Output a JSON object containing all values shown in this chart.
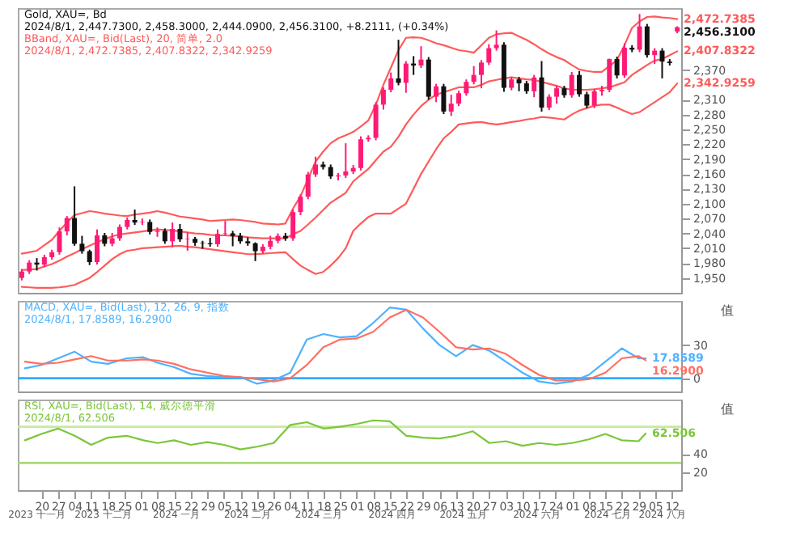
{
  "chart_data": [
    {
      "type": "candlestick",
      "title": "Gold, XAU=, Bd",
      "subtitle": "2024/8/1, 2,447.7300, 2,458.3000, 2,444.0900, 2,456.3100, +8.2111, (+0.34%)",
      "annotations": [
        "BBand, XAU=, Bid(Last), 20, 简单, 2.0",
        "2024/8/1, 2,472.7385, 2,407.8322, 2,342.9259"
      ],
      "categories": [
        null,
        null,
        null,
        null,
        null,
        null,
        null,
        null,
        null,
        null,
        null,
        null,
        null,
        null,
        null,
        null,
        null,
        null,
        null,
        null,
        null,
        null,
        null,
        null,
        null,
        null,
        null,
        null,
        null,
        null,
        null,
        null,
        null,
        null,
        null,
        null,
        null,
        null,
        null,
        null,
        null,
        null,
        null,
        null,
        null,
        null,
        null,
        null,
        null,
        null,
        null,
        null,
        null,
        null,
        null,
        null,
        null,
        null,
        null,
        null,
        null,
        null,
        null,
        null,
        null,
        null,
        null,
        null,
        null,
        null,
        null,
        null,
        null,
        null,
        null,
        null,
        null,
        null,
        null,
        null,
        null,
        null,
        null,
        null,
        null,
        null,
        null,
        null
      ],
      "ohlc": [
        [
          1950,
          1968,
          1945,
          1963
        ],
        [
          1963,
          1986,
          1958,
          1981
        ],
        [
          1981,
          1990,
          1965,
          1977
        ],
        [
          1977,
          1997,
          1972,
          1992
        ],
        [
          1992,
          2007,
          1987,
          2002
        ],
        [
          2002,
          2052,
          1997,
          2044
        ],
        [
          2044,
          2075,
          2036,
          2071
        ],
        [
          2071,
          2135,
          2015,
          2019
        ],
        [
          2019,
          2035,
          1999,
          2004
        ],
        [
          2004,
          2007,
          1976,
          1982
        ],
        [
          1982,
          2048,
          1977,
          2036
        ],
        [
          2036,
          2041,
          2014,
          2019
        ],
        [
          2019,
          2041,
          2014,
          2030
        ],
        [
          2030,
          2058,
          2025,
          2053
        ],
        [
          2053,
          2072,
          2048,
          2067
        ],
        [
          2067,
          2088,
          2057,
          2062
        ],
        [
          2062,
          2070,
          2057,
          2063
        ],
        [
          2063,
          2068,
          2038,
          2043
        ],
        [
          2043,
          2052,
          2033,
          2045
        ],
        [
          2045,
          2050,
          2019,
          2024
        ],
        [
          2024,
          2062,
          2012,
          2049
        ],
        [
          2049,
          2059,
          2023,
          2028
        ],
        [
          2028,
          2042,
          2005,
          2029
        ],
        [
          2029,
          2033,
          2015,
          2021
        ],
        [
          2021,
          2025,
          2009,
          2020
        ],
        [
          2020,
          2031,
          2013,
          2018
        ],
        [
          2018,
          2048,
          2013,
          2039
        ],
        [
          2039,
          2065,
          2035,
          2040
        ],
        [
          2040,
          2045,
          2014,
          2035
        ],
        [
          2035,
          2041,
          2019,
          2024
        ],
        [
          2024,
          2032,
          2015,
          2020
        ],
        [
          2020,
          2022,
          1984,
          2004
        ],
        [
          2004,
          2018,
          1999,
          2013
        ],
        [
          2013,
          2035,
          2008,
          2025
        ],
        [
          2025,
          2040,
          2020,
          2035
        ],
        [
          2035,
          2041,
          2025,
          2030
        ],
        [
          2030,
          2088,
          2025,
          2083
        ],
        [
          2083,
          2119,
          2077,
          2114
        ],
        [
          2114,
          2164,
          2109,
          2159
        ],
        [
          2159,
          2195,
          2154,
          2179
        ],
        [
          2179,
          2185,
          2169,
          2174
        ],
        [
          2174,
          2179,
          2150,
          2155
        ],
        [
          2155,
          2162,
          2147,
          2157
        ],
        [
          2157,
          2222,
          2152,
          2165
        ],
        [
          2165,
          2178,
          2160,
          2172
        ],
        [
          2172,
          2236,
          2167,
          2230
        ],
        [
          2230,
          2238,
          2225,
          2233
        ],
        [
          2233,
          2305,
          2228,
          2300
        ],
        [
          2300,
          2335,
          2290,
          2330
        ],
        [
          2330,
          2365,
          2325,
          2353
        ],
        [
          2353,
          2431,
          2339,
          2344
        ],
        [
          2344,
          2388,
          2324,
          2383
        ],
        [
          2383,
          2398,
          2360,
          2379
        ],
        [
          2379,
          2418,
          2374,
          2391
        ],
        [
          2391,
          2396,
          2310,
          2316
        ],
        [
          2316,
          2342,
          2305,
          2337
        ],
        [
          2337,
          2342,
          2281,
          2286
        ],
        [
          2286,
          2320,
          2277,
          2302
        ],
        [
          2302,
          2328,
          2297,
          2323
        ],
        [
          2323,
          2351,
          2318,
          2346
        ],
        [
          2346,
          2378,
          2341,
          2360
        ],
        [
          2360,
          2390,
          2333,
          2385
        ],
        [
          2385,
          2422,
          2380,
          2414
        ],
        [
          2414,
          2450,
          2409,
          2421
        ],
        [
          2421,
          2426,
          2326,
          2334
        ],
        [
          2334,
          2356,
          2329,
          2351
        ],
        [
          2351,
          2356,
          2327,
          2343
        ],
        [
          2343,
          2348,
          2322,
          2327
        ],
        [
          2327,
          2360,
          2315,
          2355
        ],
        [
          2355,
          2388,
          2286,
          2294
        ],
        [
          2294,
          2321,
          2289,
          2316
        ],
        [
          2316,
          2338,
          2302,
          2333
        ],
        [
          2333,
          2338,
          2314,
          2319
        ],
        [
          2319,
          2366,
          2314,
          2360
        ],
        [
          2360,
          2368,
          2316,
          2321
        ],
        [
          2321,
          2326,
          2293,
          2298
        ],
        [
          2298,
          2332,
          2293,
          2327
        ],
        [
          2327,
          2338,
          2318,
          2330
        ],
        [
          2330,
          2393,
          2325,
          2392
        ],
        [
          2392,
          2397,
          2353,
          2359
        ],
        [
          2359,
          2424,
          2354,
          2415
        ],
        [
          2415,
          2420,
          2406,
          2411
        ],
        [
          2411,
          2483,
          2406,
          2458
        ],
        [
          2458,
          2463,
          2395,
          2400
        ],
        [
          2400,
          2414,
          2382,
          2409
        ],
        [
          2409,
          2414,
          2353,
          2387
        ],
        [
          2387,
          2392,
          2379,
          2384
        ],
        [
          2447.73,
          2458.3,
          2444.09,
          2456.31
        ]
      ],
      "colors": [
        "#ff1a75",
        "#ff1a75",
        "#111111",
        "#ff1a75",
        "#ff1a75",
        "#ff1a75",
        "#ff1a75",
        "#111111",
        "#111111",
        "#111111",
        "#ff1a75",
        "#111111",
        "#ff1a75",
        "#ff1a75",
        "#ff1a75",
        "#111111",
        "#ff1a75",
        "#111111",
        "#ff1a75",
        "#111111",
        "#ff1a75",
        "#111111",
        "#ff1a75",
        "#111111",
        "#111111",
        "#111111",
        "#ff1a75",
        "#ff1a75",
        "#111111",
        "#111111",
        "#111111",
        "#111111",
        "#ff1a75",
        "#ff1a75",
        "#ff1a75",
        "#111111",
        "#ff1a75",
        "#ff1a75",
        "#ff1a75",
        "#ff1a75",
        "#111111",
        "#111111",
        "#ff1a75",
        "#ff1a75",
        "#ff1a75",
        "#ff1a75",
        "#ff1a75",
        "#ff1a75",
        "#ff1a75",
        "#ff1a75",
        "#111111",
        "#ff1a75",
        "#111111",
        "#ff1a75",
        "#111111",
        "#ff1a75",
        "#111111",
        "#ff1a75",
        "#ff1a75",
        "#ff1a75",
        "#ff1a75",
        "#ff1a75",
        "#ff1a75",
        "#ff1a75",
        "#111111",
        "#ff1a75",
        "#111111",
        "#111111",
        "#ff1a75",
        "#111111",
        "#ff1a75",
        "#ff1a75",
        "#111111",
        "#ff1a75",
        "#111111",
        "#111111",
        "#ff1a75",
        "#ff1a75",
        "#ff1a75",
        "#111111",
        "#ff1a75",
        "#111111",
        "#ff1a75",
        "#111111",
        "#ff1a75",
        "#111111",
        "#111111",
        "#ff1a75"
      ],
      "value_labels": [
        null,
        null,
        null,
        null,
        null,
        null,
        null,
        null,
        null,
        null,
        null,
        null,
        null,
        null,
        null,
        null,
        null,
        null,
        null,
        null,
        null,
        null,
        null,
        null,
        null,
        null,
        null,
        null,
        null,
        null,
        null,
        null,
        null,
        null,
        null,
        null,
        null,
        null,
        null,
        null,
        null,
        null,
        null,
        null,
        null,
        null,
        null,
        null,
        null,
        null,
        null,
        null,
        null,
        null,
        null,
        null,
        null,
        null,
        null,
        null,
        null,
        null,
        null,
        null,
        null,
        null,
        null,
        null,
        null,
        null,
        null,
        null,
        null,
        null,
        null,
        null,
        null,
        null,
        null,
        null,
        null,
        null,
        null,
        null,
        null,
        null,
        null,
        "2,456.3100"
      ],
      "series": [
        {
          "type": "line",
          "color": "#ff5a5a",
          "values": [
            1999,
            2002,
            2005,
            2016,
            2027,
            2045,
            2062,
            2077,
            2081,
            2085,
            2083,
            2080,
            2078,
            2076,
            2075,
            2078,
            2080,
            2082,
            2085,
            2082,
            2078,
            2074,
            2072,
            2070,
            2068,
            2065,
            2066,
            2067,
            2068,
            2067,
            2065,
            2063,
            2060,
            2059,
            2058,
            2060,
            2090,
            2115,
            2150,
            2185,
            2205,
            2222,
            2232,
            2238,
            2245,
            2256,
            2268,
            2300,
            2340,
            2375,
            2410,
            2435,
            2436,
            2435,
            2430,
            2424,
            2420,
            2415,
            2410,
            2408,
            2405,
            2420,
            2435,
            2442,
            2444,
            2445,
            2438,
            2431,
            2422,
            2412,
            2403,
            2396,
            2390,
            2380,
            2371,
            2368,
            2366,
            2366,
            2378,
            2390,
            2420,
            2455,
            2468,
            2477,
            2478,
            2476,
            2475,
            2472.7385
          ],
          "value_labels": [
            null,
            null,
            null,
            null,
            null,
            null,
            null,
            null,
            null,
            null,
            null,
            null,
            null,
            null,
            null,
            null,
            null,
            null,
            null,
            null,
            null,
            null,
            null,
            null,
            null,
            null,
            null,
            null,
            null,
            null,
            null,
            null,
            null,
            null,
            null,
            null,
            null,
            null,
            null,
            null,
            null,
            null,
            null,
            null,
            null,
            null,
            null,
            null,
            null,
            null,
            null,
            null,
            null,
            null,
            null,
            null,
            null,
            null,
            null,
            null,
            null,
            null,
            null,
            null,
            null,
            null,
            null,
            null,
            null,
            null,
            null,
            null,
            null,
            null,
            null,
            null,
            null,
            null,
            null,
            null,
            null,
            null,
            null,
            null,
            null,
            null,
            null,
            "2,472.7385"
          ]
        },
        {
          "type": "line",
          "color": "#ff5a5a",
          "values": [
            1966,
            1967,
            1968,
            1973,
            1978,
            1985,
            1993,
            2000,
            2008,
            2015,
            2022,
            2028,
            2034,
            2038,
            2040,
            2042,
            2044,
            2046,
            2048,
            2047,
            2046,
            2044,
            2042,
            2040,
            2039,
            2037,
            2036,
            2036,
            2035,
            2034,
            2032,
            2031,
            2030,
            2030,
            2030,
            2030,
            2038,
            2045,
            2058,
            2072,
            2087,
            2102,
            2112,
            2122,
            2145,
            2158,
            2170,
            2188,
            2205,
            2215,
            2235,
            2260,
            2280,
            2297,
            2310,
            2320,
            2325,
            2330,
            2335,
            2335,
            2335,
            2340,
            2347,
            2350,
            2353,
            2355,
            2353,
            2351,
            2350,
            2346,
            2342,
            2338,
            2333,
            2330,
            2330,
            2330,
            2331,
            2333,
            2335,
            2340,
            2345,
            2360,
            2370,
            2380,
            2389,
            2392,
            2400,
            2407.8322
          ],
          "value_labels": [
            null,
            null,
            null,
            null,
            null,
            null,
            null,
            null,
            null,
            null,
            null,
            null,
            null,
            null,
            null,
            null,
            null,
            null,
            null,
            null,
            null,
            null,
            null,
            null,
            null,
            null,
            null,
            null,
            null,
            null,
            null,
            null,
            null,
            null,
            null,
            null,
            null,
            null,
            null,
            null,
            null,
            null,
            null,
            null,
            null,
            null,
            null,
            null,
            null,
            null,
            null,
            null,
            null,
            null,
            null,
            null,
            null,
            null,
            null,
            null,
            null,
            null,
            null,
            null,
            null,
            null,
            null,
            null,
            null,
            null,
            null,
            null,
            null,
            null,
            null,
            null,
            null,
            null,
            null,
            null,
            null,
            null,
            null,
            null,
            null,
            null,
            null,
            "2,407.8322"
          ]
        },
        {
          "type": "line",
          "color": "#ff5a5a",
          "values": [
            1932,
            1931,
            1930,
            1930,
            1930,
            1931,
            1933,
            1936,
            1943,
            1950,
            1962,
            1975,
            1988,
            1998,
            2005,
            2007,
            2010,
            2011,
            2012,
            2013,
            2014,
            2015,
            2013,
            2012,
            2010,
            2008,
            2006,
            2004,
            2002,
            2000,
            1998,
            1998,
            1999,
            2000,
            2001,
            2002,
            1988,
            1975,
            1966,
            1958,
            1962,
            1975,
            1990,
            2010,
            2045,
            2060,
            2073,
            2080,
            2080,
            2080,
            2090,
            2100,
            2130,
            2160,
            2185,
            2210,
            2232,
            2245,
            2260,
            2262,
            2264,
            2265,
            2262,
            2260,
            2262,
            2265,
            2267,
            2270,
            2272,
            2275,
            2274,
            2272,
            2270,
            2280,
            2288,
            2293,
            2298,
            2300,
            2300,
            2294,
            2287,
            2281,
            2285,
            2295,
            2305,
            2315,
            2325,
            2342.9259
          ],
          "value_labels": [
            null,
            null,
            null,
            null,
            null,
            null,
            null,
            null,
            null,
            null,
            null,
            null,
            null,
            null,
            null,
            null,
            null,
            null,
            null,
            null,
            null,
            null,
            null,
            null,
            null,
            null,
            null,
            null,
            null,
            null,
            null,
            null,
            null,
            null,
            null,
            null,
            null,
            null,
            null,
            null,
            null,
            null,
            null,
            null,
            null,
            null,
            null,
            null,
            null,
            null,
            null,
            null,
            null,
            null,
            null,
            null,
            null,
            null,
            null,
            null,
            null,
            null,
            null,
            null,
            null,
            null,
            null,
            null,
            null,
            null,
            null,
            null,
            null,
            null,
            null,
            null,
            null,
            null,
            null,
            null,
            null,
            null,
            null,
            null,
            null,
            null,
            null,
            "2,342.9259"
          ]
        }
      ],
      "ylim": [
        1920,
        2495
      ],
      "yticks": [
        {
          "value": 1950,
          "label": "1,950"
        },
        {
          "value": 1980,
          "label": "1,980"
        },
        {
          "value": 2010,
          "label": "2,010"
        },
        {
          "value": 2040,
          "label": "2,040"
        },
        {
          "value": 2070,
          "label": "2,070"
        },
        {
          "value": 2100,
          "label": "2,100"
        },
        {
          "value": 2130,
          "label": "2,130"
        },
        {
          "value": 2160,
          "label": "2,160"
        },
        {
          "value": 2190,
          "label": "2,190"
        },
        {
          "value": 2220,
          "label": "2,220"
        },
        {
          "value": 2250,
          "label": "2,250"
        },
        {
          "value": 2280,
          "label": "2,280"
        },
        {
          "value": 2310,
          "label": "2,310"
        },
        {
          "value": 2370,
          "label": "2,370"
        }
      ],
      "tick_labels": "y"
    },
    {
      "type": "line",
      "title": "MACD, XAU=, Bid(Last), 12, 26, 9, 指数",
      "subtitle": "2024/8/1, 17.8589, 16.2900",
      "ylabel": "值",
      "x": [
        "2023-11-13",
        "2023-11-20",
        "2023-11-27",
        "2023-12-04",
        "2023-12-11",
        "2023-12-18",
        "2023-12-26",
        "2024-01-02",
        "2024-01-08",
        "2024-01-15",
        "2024-01-22",
        "2024-01-29",
        "2024-02-05",
        "2024-02-12",
        "2024-02-19",
        "2024-02-26",
        "2024-03-04",
        "2024-03-11",
        "2024-03-18",
        "2024-03-25",
        "2024-04-01",
        "2024-04-08",
        "2024-04-15",
        "2024-04-22",
        "2024-04-29",
        "2024-05-06",
        "2024-05-13",
        "2024-05-20",
        "2024-05-27",
        "2024-06-03",
        "2024-06-10",
        "2024-06-17",
        "2024-06-24",
        "2024-07-01",
        "2024-07-08",
        "2024-07-15",
        "2024-07-22",
        "2024-07-29",
        "2024-08-01"
      ],
      "series": [
        {
          "color": "#4db2ff",
          "values": [
            9,
            12,
            18,
            24,
            15,
            13,
            18,
            19,
            14,
            10,
            4,
            2,
            1,
            1,
            -5,
            -2,
            5,
            35,
            40,
            37,
            38,
            50,
            64,
            62,
            45,
            30,
            20,
            30,
            25,
            15,
            5,
            -3,
            -5,
            -3,
            3,
            15,
            27,
            18,
            17.8589
          ],
          "value_labels": [
            null,
            null,
            null,
            null,
            null,
            null,
            null,
            null,
            null,
            null,
            null,
            null,
            null,
            null,
            null,
            null,
            null,
            null,
            null,
            null,
            null,
            null,
            null,
            null,
            null,
            null,
            null,
            null,
            null,
            null,
            null,
            null,
            null,
            null,
            null,
            null,
            null,
            null,
            "17.8589"
          ]
        },
        {
          "color": "#ff6f61",
          "values": [
            15,
            13,
            14,
            17,
            20,
            16,
            16,
            17,
            16,
            13,
            8,
            5,
            2,
            1,
            -1,
            -3,
            0,
            12,
            28,
            35,
            36,
            42,
            55,
            62,
            55,
            42,
            28,
            26,
            27,
            22,
            12,
            3,
            -2,
            -2,
            -1,
            5,
            18,
            20,
            16.29
          ],
          "value_labels": [
            null,
            null,
            null,
            null,
            null,
            null,
            null,
            null,
            null,
            null,
            null,
            null,
            null,
            null,
            null,
            null,
            null,
            null,
            null,
            null,
            null,
            null,
            null,
            null,
            null,
            null,
            null,
            null,
            null,
            null,
            null,
            null,
            null,
            null,
            null,
            null,
            null,
            null,
            "16.2900"
          ]
        }
      ],
      "ref_lines": [
        {
          "axis": "y",
          "value": 0,
          "color": "#33aaff"
        }
      ],
      "xlim": [
        "2023-11-10",
        "2024-08-16"
      ],
      "ylim": [
        -12,
        70
      ],
      "yticks": [
        0,
        30
      ],
      "tick_labels": "y"
    },
    {
      "type": "line",
      "title": "RSI, XAU=, Bid(Last), 14, 威尔德平滑",
      "subtitle": "2024/8/1, 62.506",
      "ylabel": "值",
      "x": [
        "2023-11-13",
        "2023-11-20",
        "2023-11-27",
        "2023-12-04",
        "2023-12-11",
        "2023-12-18",
        "2023-12-26",
        "2024-01-02",
        "2024-01-08",
        "2024-01-15",
        "2024-01-22",
        "2024-01-29",
        "2024-02-05",
        "2024-02-12",
        "2024-02-19",
        "2024-02-26",
        "2024-03-04",
        "2024-03-11",
        "2024-03-18",
        "2024-03-25",
        "2024-04-01",
        "2024-04-08",
        "2024-04-15",
        "2024-04-22",
        "2024-04-29",
        "2024-05-06",
        "2024-05-13",
        "2024-05-20",
        "2024-05-27",
        "2024-06-03",
        "2024-06-10",
        "2024-06-17",
        "2024-06-24",
        "2024-07-01",
        "2024-07-08",
        "2024-07-15",
        "2024-07-22",
        "2024-07-29",
        "2024-08-01"
      ],
      "series": [
        {
          "color": "#7cc63a",
          "values": [
            55,
            62,
            68,
            60,
            50,
            58,
            60,
            55,
            52,
            55,
            50,
            53,
            50,
            45,
            48,
            52,
            72,
            75,
            68,
            70,
            73,
            77,
            76,
            60,
            58,
            57,
            60,
            65,
            52,
            54,
            49,
            52,
            50,
            52,
            56,
            62,
            55,
            54,
            62.506
          ],
          "value_labels": [
            null,
            null,
            null,
            null,
            null,
            null,
            null,
            null,
            null,
            null,
            null,
            null,
            null,
            null,
            null,
            null,
            null,
            null,
            null,
            null,
            null,
            null,
            null,
            null,
            null,
            null,
            null,
            null,
            null,
            null,
            null,
            null,
            null,
            null,
            null,
            null,
            null,
            null,
            "62.506"
          ]
        }
      ],
      "ref_lines": [
        {
          "axis": "y",
          "value": 70,
          "color": "#c8eaa0"
        },
        {
          "axis": "y",
          "value": 30,
          "color": "#a8d878"
        }
      ],
      "xlim": [
        "2023-11-10",
        "2024-08-16"
      ],
      "ylim": [
        0,
        100
      ],
      "yticks": [
        20,
        40
      ],
      "xticks": [
        {
          "value": "2023-11-20",
          "label": "20"
        },
        {
          "value": "2023-11-27",
          "label": "27"
        },
        {
          "value": "2023-12-04",
          "label": "04"
        },
        {
          "value": "2023-12-11",
          "label": "11"
        },
        {
          "value": "2023-12-18",
          "label": "18"
        },
        {
          "value": "2023-12-25",
          "label": "25"
        },
        {
          "value": "2024-01-01",
          "label": "01"
        },
        {
          "value": "2024-01-08",
          "label": "08"
        },
        {
          "value": "2024-01-15",
          "label": "15"
        },
        {
          "value": "2024-01-22",
          "label": "22"
        },
        {
          "value": "2024-01-29",
          "label": "29"
        },
        {
          "value": "2024-02-05",
          "label": "05"
        },
        {
          "value": "2024-02-12",
          "label": "12"
        },
        {
          "value": "2024-02-19",
          "label": "19"
        },
        {
          "value": "2024-02-26",
          "label": "26"
        },
        {
          "value": "2024-03-04",
          "label": "04"
        },
        {
          "value": "2024-03-11",
          "label": "11"
        },
        {
          "value": "2024-03-18",
          "label": "18"
        },
        {
          "value": "2024-03-25",
          "label": "25"
        },
        {
          "value": "2024-04-01",
          "label": "01"
        },
        {
          "value": "2024-04-08",
          "label": "08"
        },
        {
          "value": "2024-04-15",
          "label": "15"
        },
        {
          "value": "2024-04-22",
          "label": "22"
        },
        {
          "value": "2024-04-29",
          "label": "29"
        },
        {
          "value": "2024-05-06",
          "label": "06"
        },
        {
          "value": "2024-05-13",
          "label": "13"
        },
        {
          "value": "2024-05-20",
          "label": "20"
        },
        {
          "value": "2024-05-27",
          "label": "27"
        },
        {
          "value": "2024-06-03",
          "label": "03"
        },
        {
          "value": "2024-06-10",
          "label": "10"
        },
        {
          "value": "2024-06-17",
          "label": "17"
        },
        {
          "value": "2024-06-24",
          "label": "24"
        },
        {
          "value": "2024-07-01",
          "label": "01"
        },
        {
          "value": "2024-07-08",
          "label": "08"
        },
        {
          "value": "2024-07-15",
          "label": "15"
        },
        {
          "value": "2024-07-22",
          "label": "22"
        },
        {
          "value": "2024-07-29",
          "label": "29"
        },
        {
          "value": "2024-08-05",
          "label": "05"
        },
        {
          "value": "2024-08-12",
          "label": "12"
        }
      ],
      "x2lim": [
        "2023-11-10",
        "2024-08-16"
      ],
      "x2ticks": [
        {
          "value": "2023-11-18",
          "label": "2023 十一月"
        },
        {
          "value": "2023-12-16",
          "label": "2023 十二月"
        },
        {
          "value": "2024-01-16",
          "label": "2024 一月"
        },
        {
          "value": "2024-02-15",
          "label": "2024 二月"
        },
        {
          "value": "2024-03-16",
          "label": "2024 三月"
        },
        {
          "value": "2024-04-16",
          "label": "2024 四月"
        },
        {
          "value": "2024-05-16",
          "label": "2024 五月"
        },
        {
          "value": "2024-06-16",
          "label": "2024 六月"
        },
        {
          "value": "2024-07-16",
          "label": "2024 七月"
        },
        {
          "value": "2024-08-08",
          "label": "2024 八月"
        }
      ]
    }
  ]
}
